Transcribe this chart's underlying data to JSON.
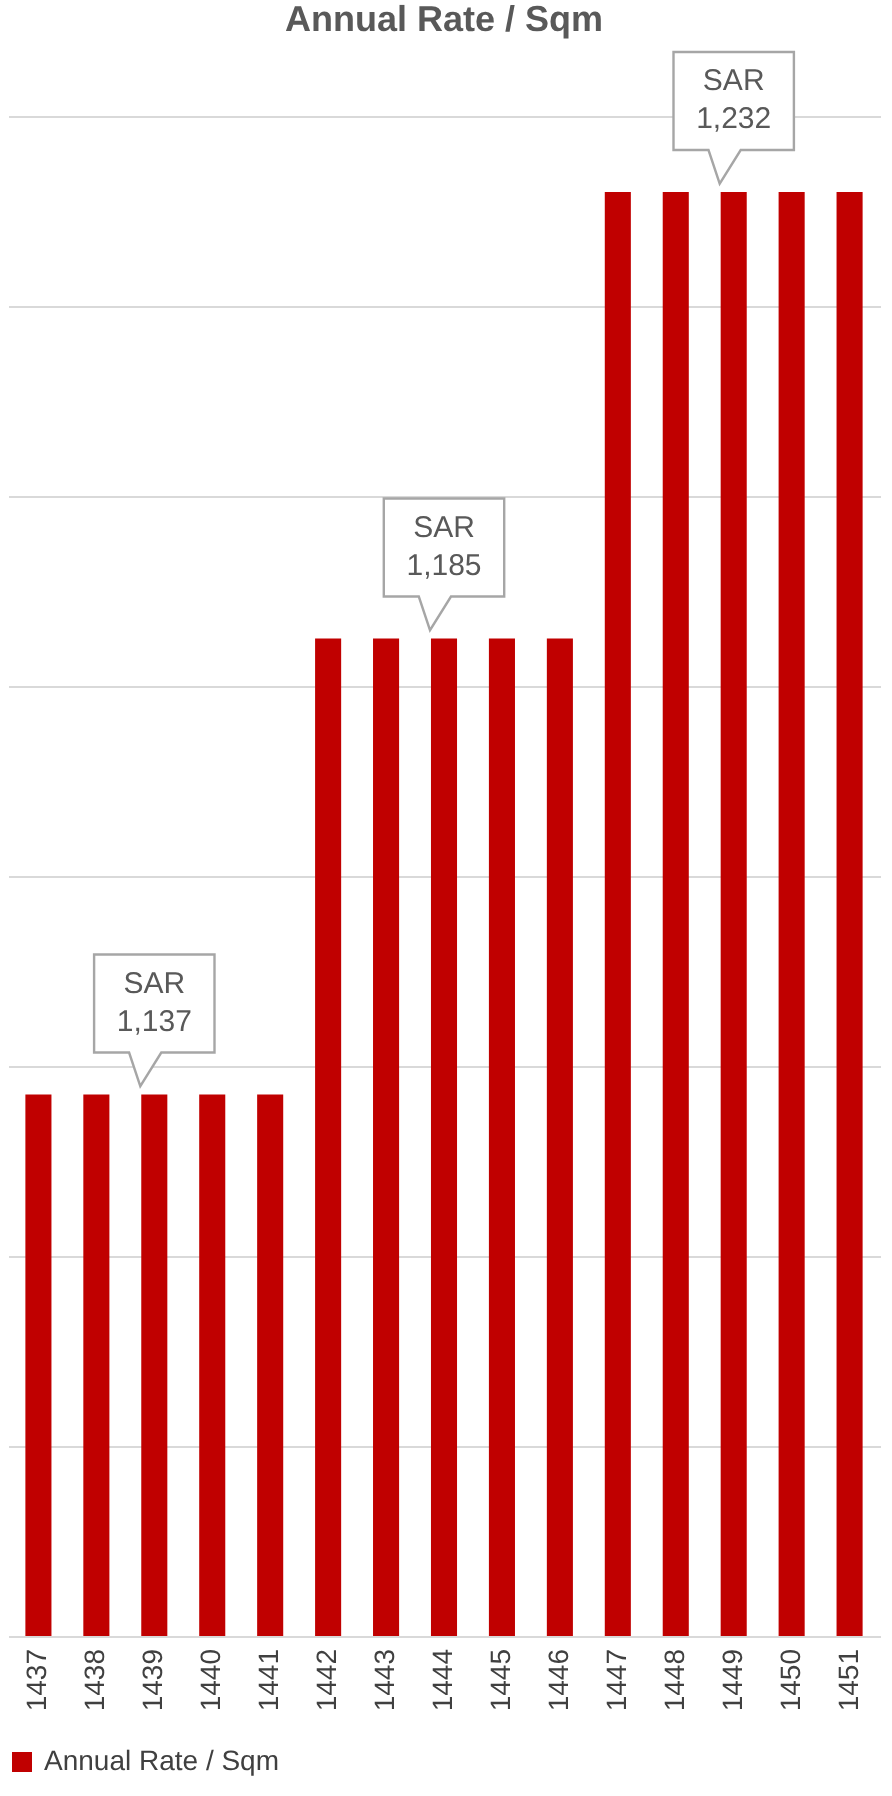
{
  "chart_data": {
    "type": "bar",
    "title": "Annual Rate / Sqm",
    "categories": [
      "1437",
      "1438",
      "1439",
      "1440",
      "1441",
      "1442",
      "1443",
      "1444",
      "1445",
      "1446",
      "1447",
      "1448",
      "1449",
      "1450",
      "1451"
    ],
    "series": [
      {
        "name": "Annual Rate / Sqm",
        "color": "#c00000",
        "values": [
          1137,
          1137,
          1137,
          1137,
          1137,
          1185,
          1185,
          1185,
          1185,
          1185,
          1232,
          1232,
          1232,
          1232,
          1232
        ],
        "value_labels": [
          null,
          null,
          "SAR 1,137",
          null,
          null,
          null,
          null,
          "SAR 1,185",
          null,
          null,
          null,
          null,
          "SAR 1,232",
          null,
          null
        ]
      }
    ],
    "ylim": [
      1080,
      1240
    ],
    "yticks": [
      {
        "value": 1080,
        "label": null
      },
      {
        "value": 1100,
        "label": null
      },
      {
        "value": 1120,
        "label": null
      },
      {
        "value": 1140,
        "label": null
      },
      {
        "value": 1160,
        "label": null
      },
      {
        "value": 1180,
        "label": null
      },
      {
        "value": 1200,
        "label": null
      },
      {
        "value": 1220,
        "label": null
      },
      {
        "value": 1240,
        "label": null
      }
    ],
    "tick_labels": "x",
    "grid": "y",
    "legend": "bottom"
  }
}
